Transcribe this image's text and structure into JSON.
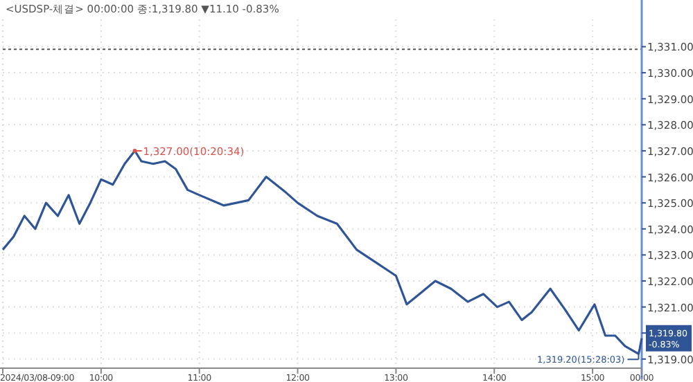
{
  "chart_data": {
    "type": "line",
    "title": "<USDSP-체결> 00:00:00 종:1,319.80 ▼11.10 -0.83%",
    "x": [
      9.0,
      9.11,
      9.22,
      9.33,
      9.44,
      9.56,
      9.67,
      9.78,
      9.89,
      10.0,
      10.12,
      10.24,
      10.343,
      10.41,
      10.53,
      10.65,
      10.76,
      10.88,
      11.0,
      11.25,
      11.5,
      11.68,
      11.88,
      12.0,
      12.2,
      12.4,
      12.6,
      12.8,
      13.0,
      13.11,
      13.24,
      13.4,
      13.56,
      13.73,
      13.89,
      14.03,
      14.15,
      14.28,
      14.38,
      14.57,
      14.72,
      14.86,
      15.02,
      15.13,
      15.23,
      15.33,
      15.468,
      15.48,
      15.5
    ],
    "series": [
      {
        "color": "#2f5597",
        "values": [
          1323.2,
          1323.7,
          1324.5,
          1324.0,
          1325.0,
          1324.5,
          1325.3,
          1324.2,
          1325.0,
          1325.9,
          1325.7,
          1326.5,
          1327.0,
          1326.6,
          1326.5,
          1326.6,
          1326.3,
          1325.5,
          1325.3,
          1324.9,
          1325.1,
          1326.0,
          1325.4,
          1325.0,
          1324.5,
          1324.2,
          1323.2,
          1322.7,
          1322.2,
          1321.1,
          1321.5,
          1322.0,
          1321.7,
          1321.2,
          1321.5,
          1321.0,
          1321.2,
          1320.5,
          1320.8,
          1321.7,
          1320.9,
          1320.1,
          1321.1,
          1319.9,
          1319.9,
          1319.5,
          1319.2,
          1319.4,
          1319.8
        ]
      }
    ],
    "xlim": [
      9,
      15.5
    ],
    "xticks": [
      {
        "value": 9,
        "label": "2024/03/08-09:00"
      },
      {
        "value": 10,
        "label": "10:00"
      },
      {
        "value": 11,
        "label": "11:00"
      },
      {
        "value": 12,
        "label": "12:00"
      },
      {
        "value": 13,
        "label": "13:00"
      },
      {
        "value": 14,
        "label": "14:00"
      },
      {
        "value": 15,
        "label": "15:00"
      },
      {
        "value": 15.5,
        "label": "00:00"
      }
    ],
    "ylim": [
      1318.65,
      1332.05
    ],
    "yticks": [
      {
        "value": 1319,
        "label": "1,319.00"
      },
      {
        "value": 1320,
        "label": null
      },
      {
        "value": 1321,
        "label": "1,321.00"
      },
      {
        "value": 1322,
        "label": "1,322.00"
      },
      {
        "value": 1323,
        "label": "1,323.00"
      },
      {
        "value": 1324,
        "label": "1,324.00"
      },
      {
        "value": 1325,
        "label": "1,325.00"
      },
      {
        "value": 1326,
        "label": "1,326.00"
      },
      {
        "value": 1327,
        "label": "1,327.00"
      },
      {
        "value": 1328,
        "label": "1,328.00"
      },
      {
        "value": 1329,
        "label": "1,329.00"
      },
      {
        "value": 1330,
        "label": "1,330.00"
      },
      {
        "value": 1331,
        "label": "1,331.00"
      }
    ],
    "ref_lines": [
      {
        "axis": "y",
        "value": 1330.9,
        "color": "#555555",
        "line_style": "dotted"
      }
    ],
    "annotations": [
      {
        "text": "1,327.00(10:20:34)",
        "x": 10.343,
        "y": 1327.0
      },
      {
        "text": "1,319.20(15:28:03)",
        "x": 15.468,
        "y": 1319.2
      },
      {
        "text": "1,319.80\n-0.83%",
        "x": 15.5,
        "y": 1319.8
      }
    ],
    "grid": true
  }
}
